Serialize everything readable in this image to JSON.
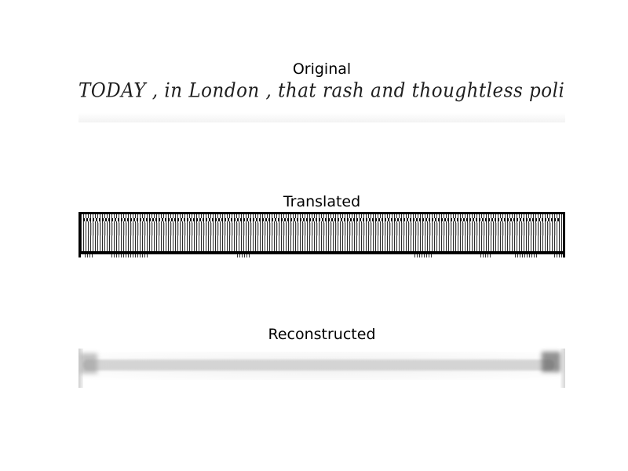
{
  "panels": {
    "original": {
      "title": "Original",
      "handwriting_text": "TODAY , in London , that rash and thoughtless policy has"
    },
    "translated": {
      "title": "Translated"
    },
    "reconstructed": {
      "title": "Reconstructed"
    }
  },
  "colors": {
    "background": "#ffffff",
    "text": "#000000",
    "ink": "#1e1e1e"
  }
}
